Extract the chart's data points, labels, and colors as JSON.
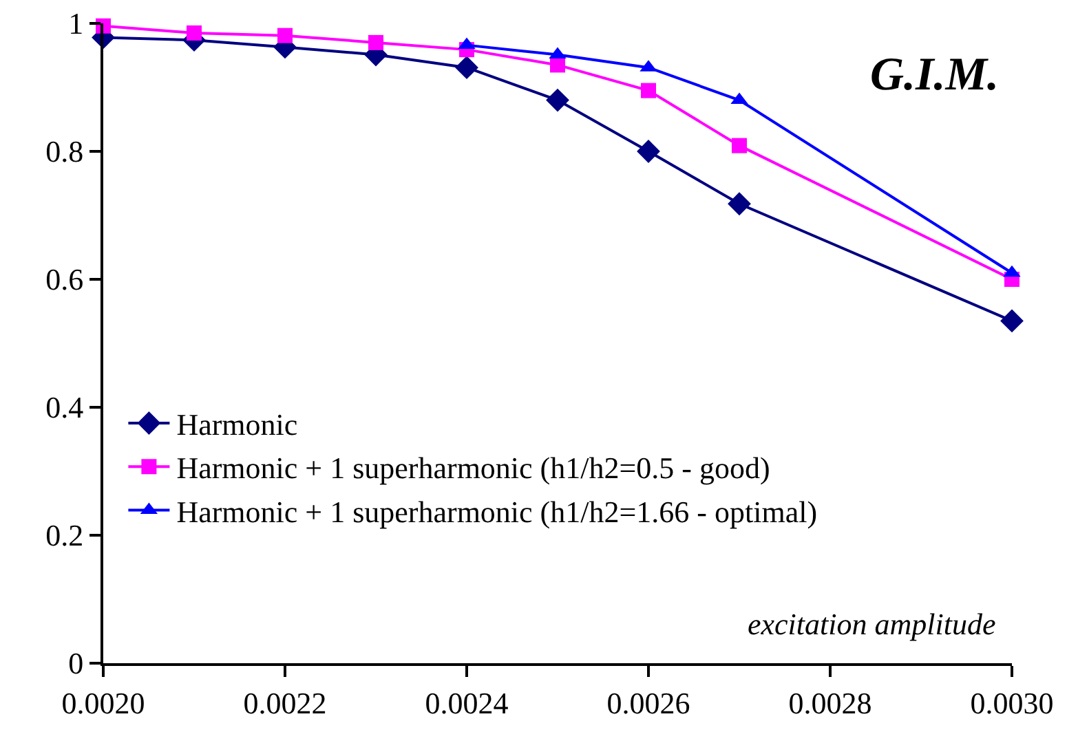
{
  "chart_data": {
    "type": "line",
    "xlabel": "excitation amplitude",
    "annotations": [
      "G.I.M."
    ],
    "x": [
      0.002,
      0.0021,
      0.0022,
      0.0023,
      0.0024,
      0.0025,
      0.0026,
      0.0027,
      0.003
    ],
    "series": [
      {
        "name": "Harmonic",
        "color": "#000080",
        "marker": "diamond",
        "values": [
          0.978,
          0.974,
          0.963,
          0.951,
          0.931,
          0.88,
          0.8,
          0.718,
          0.535
        ]
      },
      {
        "name": "Harmonic + 1 superharmonic (h1/h2=0.5 - good)",
        "color": "#ff00ff",
        "marker": "square",
        "values": [
          0.996,
          0.985,
          0.981,
          0.97,
          0.959,
          0.935,
          0.895,
          0.809,
          0.6
        ]
      },
      {
        "name": "Harmonic + 1 superharmonic (h1/h2=1.66 - optimal)",
        "color": "#0000ff",
        "marker": "triangle",
        "x": [
          0.0024,
          0.0025,
          0.0026,
          0.0027,
          0.003
        ],
        "values": [
          0.966,
          0.951,
          0.931,
          0.88,
          0.61
        ]
      }
    ],
    "xlim": [
      0.002,
      0.003
    ],
    "xticks": [
      {
        "value": 0.002,
        "label": "0.0020"
      },
      {
        "value": 0.0022,
        "label": "0.0022"
      },
      {
        "value": 0.0024,
        "label": "0.0024"
      },
      {
        "value": 0.0026,
        "label": "0.0026"
      },
      {
        "value": 0.0028,
        "label": "0.0028"
      },
      {
        "value": 0.003,
        "label": "0.0030"
      }
    ],
    "ylim": [
      0,
      1
    ],
    "yticks": [
      0,
      0.2,
      0.4,
      0.6,
      0.8,
      1
    ],
    "grid": false,
    "legend": "bottom left",
    "line_style": "solid"
  }
}
